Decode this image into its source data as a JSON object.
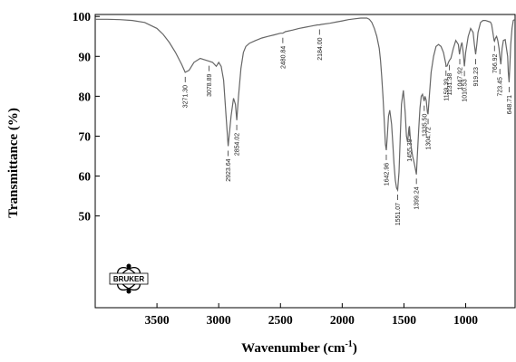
{
  "chart_data": {
    "type": "line",
    "xlabel": "Wavenumber (cm",
    "xlabel_sup": "-1",
    "xlabel_close": ")",
    "ylabel": "Transmittance (%)",
    "xlim": [
      4000,
      600
    ],
    "ylim": [
      27,
      100.5
    ],
    "xticks": [
      3500,
      3000,
      2500,
      2000,
      1500,
      1000
    ],
    "yticks": [
      50,
      60,
      70,
      80,
      90,
      100
    ],
    "grid": false,
    "logo_text": "BRUKER",
    "line_color": "#666666",
    "series": [
      {
        "x": [
          4000,
          3900,
          3800,
          3700,
          3600,
          3500,
          3450,
          3400,
          3350,
          3300,
          3271.3,
          3240,
          3200,
          3150,
          3100,
          3078.89,
          3050,
          3020,
          3000,
          2980,
          2960,
          2940,
          2923.64,
          2900,
          2880,
          2865,
          2854.02,
          2840,
          2820,
          2800,
          2780,
          2750,
          2700,
          2650,
          2600,
          2550,
          2500,
          2480.84,
          2460,
          2400,
          2350,
          2300,
          2250,
          2200,
          2184,
          2170,
          2100,
          2050,
          2000,
          1950,
          1900,
          1850,
          1800,
          1780,
          1760,
          1740,
          1720,
          1700,
          1690,
          1680,
          1670,
          1660,
          1650,
          1642.96,
          1635,
          1625,
          1615,
          1600,
          1590,
          1580,
          1570,
          1560,
          1551.07,
          1540,
          1530,
          1520,
          1505,
          1490,
          1480,
          1470,
          1460,
          1455.39,
          1445,
          1430,
          1415,
          1400,
          1399.24,
          1390,
          1380,
          1370,
          1360,
          1350,
          1340,
          1335.5,
          1330,
          1320,
          1310,
          1304.72,
          1295,
          1280,
          1260,
          1240,
          1220,
          1200,
          1180,
          1160,
          1159.39,
          1150,
          1140,
          1131.38,
          1120,
          1100,
          1080,
          1060,
          1050,
          1047.92,
          1040,
          1030,
          1020,
          1010.53,
          1000,
          980,
          960,
          940,
          930,
          919.23,
          910,
          900,
          880,
          860,
          840,
          820,
          800,
          790,
          780,
          770,
          766.92,
          760,
          750,
          740,
          730,
          723.45,
          715,
          705,
          695,
          680,
          670,
          660,
          655,
          648.71,
          642,
          635,
          625,
          615,
          605,
          600
        ],
        "y": [
          99.3,
          99.3,
          99.2,
          99.0,
          98.5,
          97,
          95.5,
          93.5,
          91,
          88,
          86,
          86.5,
          88.5,
          89.5,
          89,
          88.8,
          88.5,
          87.5,
          88.5,
          87.5,
          84,
          75,
          67.5,
          75,
          79.5,
          78,
          74,
          80,
          87,
          91,
          92.5,
          93.3,
          94,
          94.6,
          95,
          95.4,
          95.8,
          95.8,
          96.2,
          96.6,
          97,
          97.3,
          97.6,
          97.9,
          97.9,
          98,
          98.3,
          98.6,
          98.9,
          99.2,
          99.4,
          99.6,
          99.6,
          99.3,
          98.5,
          97,
          95,
          92,
          89,
          85,
          80,
          74,
          68,
          66.5,
          70,
          75,
          76.5,
          73,
          68,
          63,
          59,
          57,
          56.5,
          61,
          70,
          78,
          81.5,
          76,
          70,
          68.5,
          72,
          72.5,
          68,
          65,
          63,
          60.5,
          60.5,
          66,
          72,
          77,
          80,
          80.5,
          79.2,
          78.8,
          80,
          79,
          76,
          75.5,
          80,
          86,
          90,
          92.5,
          93,
          92.5,
          91,
          88,
          87.5,
          87.6,
          88.5,
          89,
          89.5,
          92,
          94,
          93,
          90.5,
          91,
          92.5,
          93.5,
          91,
          87.5,
          91,
          95,
          97,
          96,
          93,
          90.5,
          93,
          96,
          98.5,
          99,
          99,
          98.8,
          98.6,
          98,
          96,
          94,
          93.8,
          94.5,
          95,
          94,
          92,
          90,
          88,
          92,
          94,
          94.2,
          92,
          90,
          86,
          83.5,
          88,
          93,
          97,
          99,
          99.2,
          99.2
        ]
      }
    ],
    "peak_labels": [
      {
        "text": "3271.30",
        "x": 3271.3,
        "y": 86
      },
      {
        "text": "3078.89",
        "x": 3078.89,
        "y": 88.8
      },
      {
        "text": "2923.64",
        "x": 2923.64,
        "y": 67.5
      },
      {
        "text": "2854.02",
        "x": 2854.02,
        "y": 74
      },
      {
        "text": "2480.84",
        "x": 2480.84,
        "y": 95.8
      },
      {
        "text": "2184.00",
        "x": 2184,
        "y": 97.9
      },
      {
        "text": "1642.96",
        "x": 1642.96,
        "y": 66.5
      },
      {
        "text": "1551.07",
        "x": 1551.07,
        "y": 56.5
      },
      {
        "text": "1455.39",
        "x": 1455.39,
        "y": 72.5
      },
      {
        "text": "1399.24",
        "x": 1399.24,
        "y": 60.5
      },
      {
        "text": "1335.50",
        "x": 1335.5,
        "y": 78.8
      },
      {
        "text": "1304.72",
        "x": 1304.72,
        "y": 75.5
      },
      {
        "text": "1159.39",
        "x": 1159.39,
        "y": 87.6
      },
      {
        "text": "1131.38",
        "x": 1131.38,
        "y": 89
      },
      {
        "text": "1047.92",
        "x": 1047.92,
        "y": 90.5
      },
      {
        "text": "1010.53",
        "x": 1010.53,
        "y": 87.5
      },
      {
        "text": "919.23",
        "x": 919.23,
        "y": 90.5
      },
      {
        "text": "766.92",
        "x": 766.92,
        "y": 93.8
      },
      {
        "text": "723.45",
        "x": 723.45,
        "y": 88
      },
      {
        "text": "648.71",
        "x": 648.71,
        "y": 83.5
      }
    ]
  }
}
